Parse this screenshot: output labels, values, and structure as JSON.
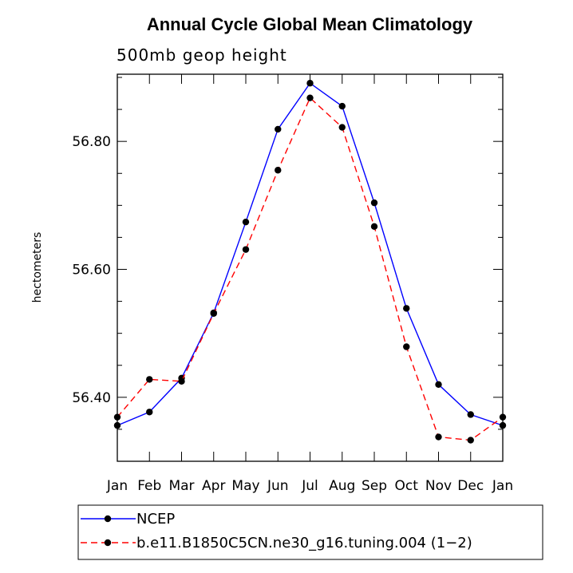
{
  "chart_data": {
    "type": "line",
    "title": "Annual Cycle Global Mean Climatology",
    "subtitle": "500mb geop height",
    "ylabel": "hectometers",
    "xlabel": "",
    "categories": [
      "Jan",
      "Feb",
      "Mar",
      "Apr",
      "May",
      "Jun",
      "Jul",
      "Aug",
      "Sep",
      "Oct",
      "Nov",
      "Dec",
      "Jan"
    ],
    "yticks": [
      "56.40",
      "56.60",
      "56.80"
    ],
    "ylim": [
      56.3,
      56.905
    ],
    "grid": false,
    "legend_position": "bottom",
    "series": [
      {
        "name": "NCEP",
        "color": "#0000ff",
        "dash": "solid",
        "values": [
          56.356,
          56.377,
          56.43,
          56.532,
          56.674,
          56.819,
          56.891,
          56.855,
          56.704,
          56.539,
          56.42,
          56.373,
          56.356
        ]
      },
      {
        "name": "b.e11.B1850C5CN.ne30_g16.tuning.004 (1−2)",
        "color": "#ff0000",
        "dash": "dashed",
        "values": [
          56.369,
          56.428,
          56.425,
          56.531,
          56.631,
          56.755,
          56.868,
          56.822,
          56.667,
          56.479,
          56.338,
          56.333,
          56.369
        ]
      }
    ]
  }
}
